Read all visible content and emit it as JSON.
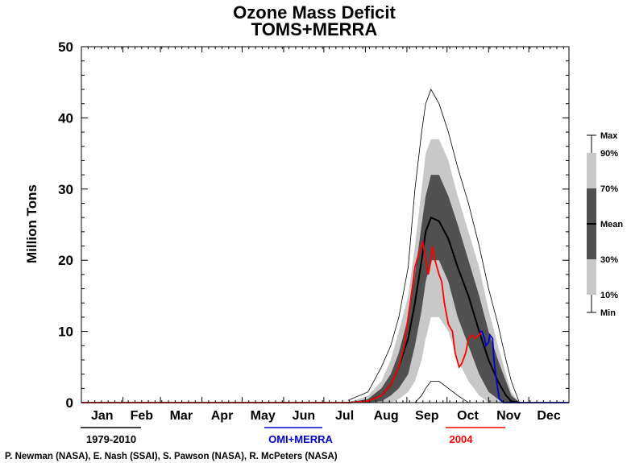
{
  "chart_data": {
    "type": "area",
    "title": "Ozone Mass Deficit",
    "subtitle": "TOMS+MERRA",
    "ylabel": "Million Tons",
    "ylim": [
      0,
      50
    ],
    "yticks": [
      "0",
      "10",
      "20",
      "30",
      "40",
      "50"
    ],
    "xlim": [
      1,
      365
    ],
    "months": [
      "Jan",
      "Feb",
      "Mar",
      "Apr",
      "May",
      "Jun",
      "Jul",
      "Aug",
      "Sep",
      "Oct",
      "Nov",
      "Dec"
    ],
    "legend": {
      "labels": [
        "Max",
        "90%",
        "70%",
        "Mean",
        "30%",
        "10%",
        "Min"
      ],
      "colors": {
        "light": "#c8c8c8",
        "dark": "#505050",
        "line": "#000000"
      }
    },
    "keys": [
      {
        "label": "1979-2010",
        "color": "#000000"
      },
      {
        "label": "OMI+MERRA",
        "color": "#0000d0"
      },
      {
        "label": "2004",
        "color": "#ff0000"
      }
    ],
    "credit": "P. Newman (NASA), E. Nash (SSAI), S. Pawson (NASA), R. McPeters (NASA)",
    "climatology": {
      "day": [
        200,
        215,
        225,
        232,
        238,
        245,
        250,
        255,
        258,
        262,
        268,
        275,
        282,
        290,
        298,
        305,
        312,
        318,
        322,
        328
      ],
      "max": [
        0.3,
        1.5,
        5,
        8,
        12,
        19,
        30,
        38,
        42,
        44,
        42,
        38,
        33,
        28,
        22,
        16,
        11,
        6,
        3,
        0
      ],
      "p90": [
        0,
        1,
        3,
        6,
        10,
        15,
        22,
        30,
        35,
        37,
        37,
        34,
        29,
        24,
        19,
        13,
        8,
        4,
        1.5,
        0
      ],
      "p70": [
        0,
        0.5,
        2,
        4,
        7,
        12,
        18,
        25,
        29,
        32,
        32,
        29,
        25,
        20,
        15,
        10,
        6,
        3,
        1,
        0
      ],
      "mean": [
        0,
        0.2,
        1,
        2.5,
        5,
        9,
        14,
        20,
        24,
        26,
        25.5,
        23,
        19,
        15,
        10,
        6,
        3,
        1,
        0.2,
        0
      ],
      "p30": [
        0,
        0,
        0.2,
        1,
        2,
        4,
        8,
        13,
        17,
        20,
        20,
        17,
        12,
        8,
        4,
        1.5,
        0.5,
        0,
        0,
        0
      ],
      "p10": [
        0,
        0,
        0,
        0,
        0.5,
        1.5,
        3,
        6,
        9,
        12,
        12,
        10,
        6,
        3,
        1,
        0,
        0,
        0,
        0,
        0
      ],
      "min": [
        0,
        0,
        0,
        0,
        0,
        0,
        0,
        1,
        2,
        3,
        3,
        2,
        1,
        0,
        0,
        0,
        0,
        0,
        0,
        0
      ]
    },
    "series": [
      {
        "name": "2004",
        "color": "#ff0000",
        "x": [
          1,
          200,
          215,
          225,
          232,
          238,
          242,
          245,
          248,
          250,
          253,
          256,
          258,
          260,
          262,
          263,
          265,
          268,
          270,
          272,
          275,
          278,
          280,
          283,
          285,
          288,
          290,
          293,
          295,
          298,
          300
        ],
        "y": [
          0,
          0,
          0.2,
          1,
          2.5,
          5,
          8,
          12,
          16,
          19,
          21,
          22.5,
          20,
          18,
          20,
          22,
          20,
          18,
          17,
          14,
          11,
          10,
          7,
          5,
          5.5,
          7,
          9,
          9.5,
          9,
          9.5,
          10
        ]
      },
      {
        "name": "OMI+MERRA",
        "color": "#0000d0",
        "x": [
          298,
          300,
          302,
          303,
          305,
          306,
          308,
          309,
          311,
          313,
          316,
          320,
          365
        ],
        "y": [
          10,
          10,
          9,
          8,
          8.5,
          9.5,
          9,
          6,
          3,
          0.5,
          0,
          0,
          0
        ]
      }
    ]
  }
}
